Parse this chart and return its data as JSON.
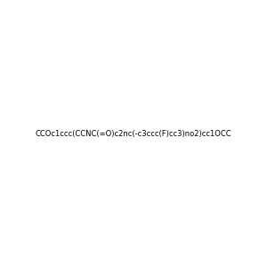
{
  "smiles": "CCOc1ccc(CCNC(=O)c2nc(-c3ccc(F)cc3)no2)cc1OCC",
  "image_size": 300,
  "background_color": "#e8e8e8",
  "title": ""
}
